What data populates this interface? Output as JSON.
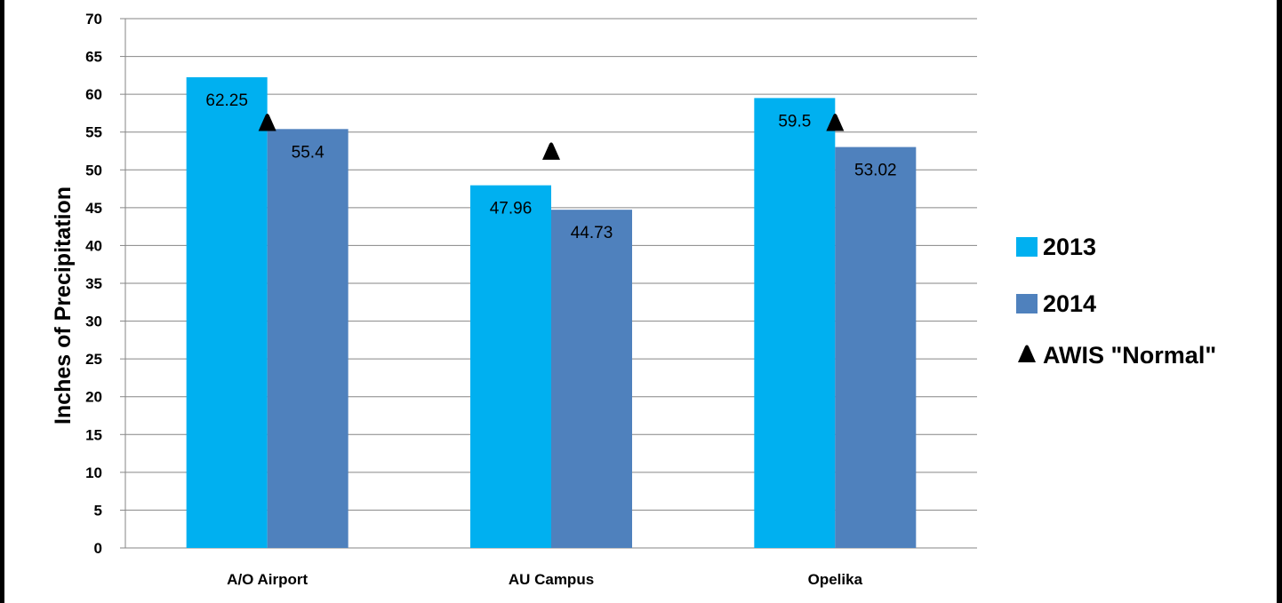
{
  "chart_data": {
    "type": "bar",
    "title": "",
    "xlabel": "",
    "ylabel": "Inches of Precipitation",
    "ylim": [
      0,
      70
    ],
    "y_ticks": [
      "0",
      "5",
      "10",
      "15",
      "20",
      "25",
      "30",
      "35",
      "40",
      "45",
      "50",
      "55",
      "60",
      "65",
      "70"
    ],
    "categories": [
      "A/O Airport",
      "AU Campus",
      "Opelika"
    ],
    "series": [
      {
        "name": "2013",
        "values": [
          62.25,
          47.96,
          59.5
        ],
        "labels": [
          "62.25",
          "47.96",
          "59.5"
        ],
        "color": "#00B0F0"
      },
      {
        "name": "2014",
        "values": [
          55.4,
          44.73,
          53.02
        ],
        "labels": [
          "55.4",
          "44.73",
          "53.02"
        ],
        "color": "#4F81BD"
      }
    ],
    "markers": {
      "name": "AWIS \"Normal\"",
      "values": [
        56.2,
        52.4,
        56.2
      ],
      "color": "#000000",
      "shape": "triangle"
    },
    "grid": true,
    "legend_position": "right",
    "background": "#FFFFFF",
    "border_color": "#000000"
  }
}
